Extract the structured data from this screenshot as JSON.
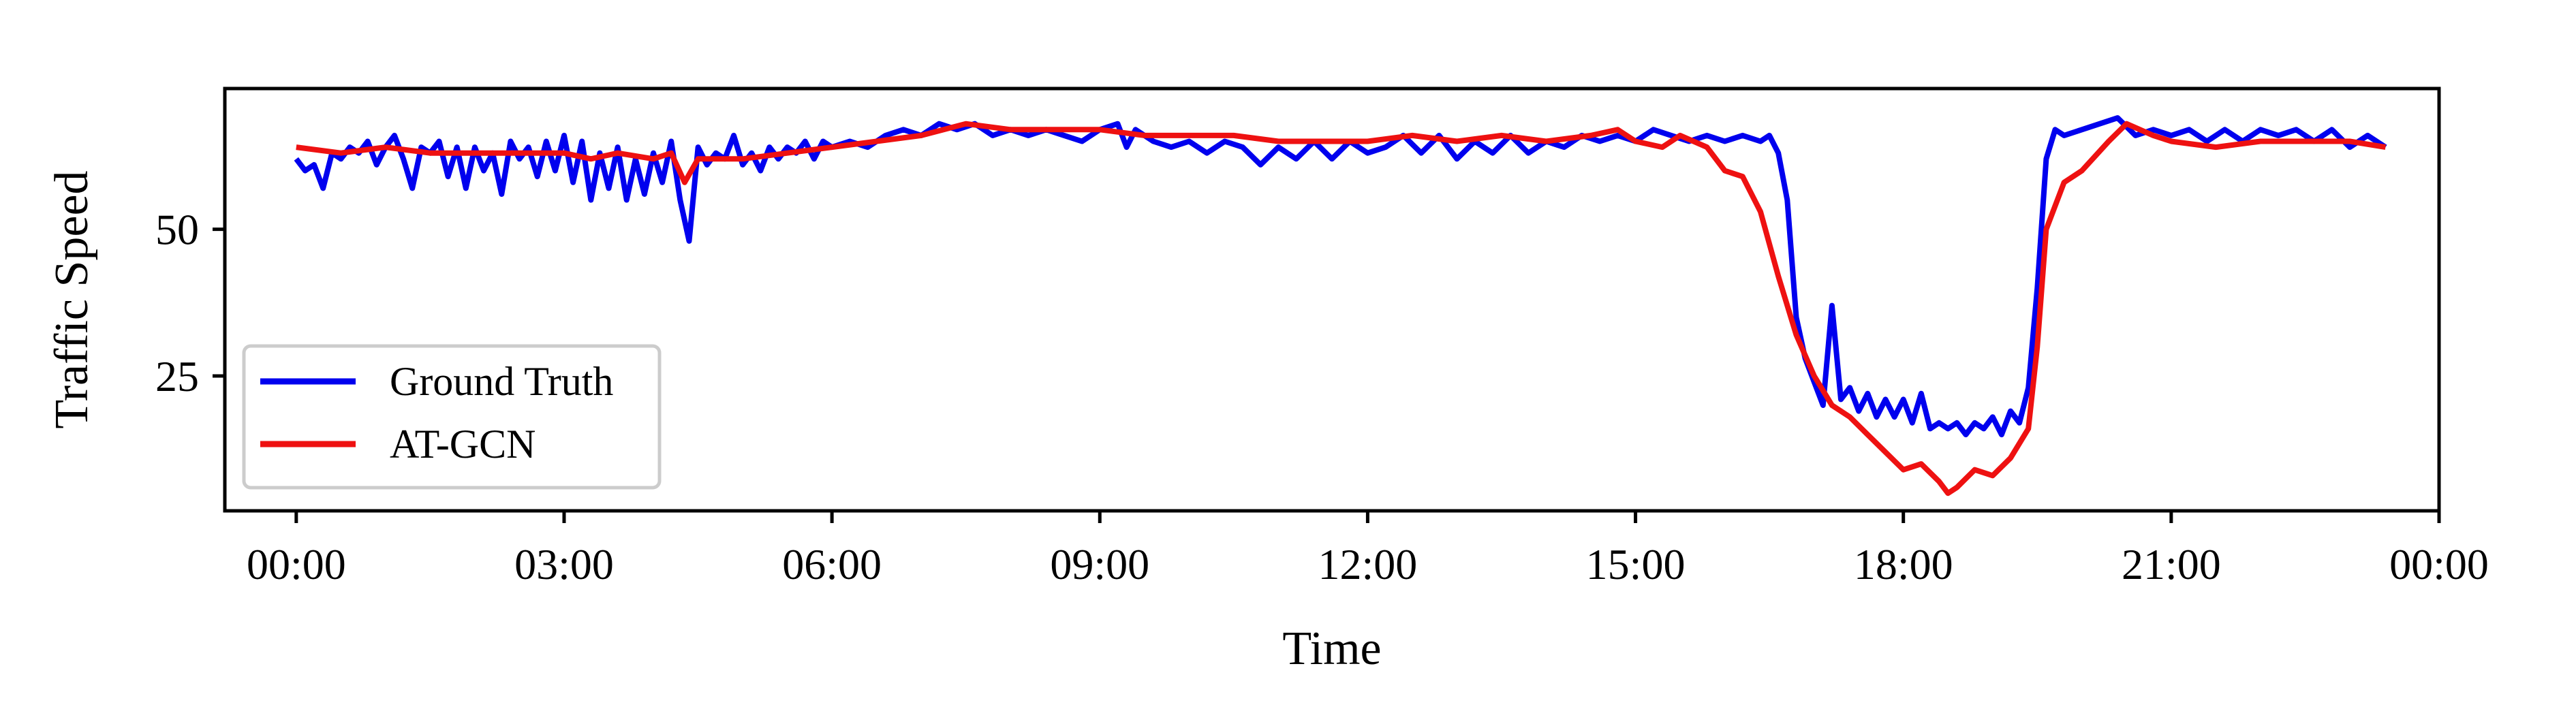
{
  "chart_data": {
    "type": "line",
    "xlabel": "Time",
    "ylabel": "Traffic Speed",
    "x_unit": "hours",
    "xlim": [
      -0.8,
      24.0
    ],
    "ylim": [
      2,
      74
    ],
    "xticks": [
      0,
      3,
      6,
      9,
      12,
      15,
      18,
      21,
      24
    ],
    "xtick_labels": [
      "00:00",
      "03:00",
      "06:00",
      "09:00",
      "12:00",
      "15:00",
      "18:00",
      "21:00",
      "00:00"
    ],
    "yticks": [
      25,
      50
    ],
    "ytick_labels": [
      "25",
      "50"
    ],
    "grid": false,
    "legend_position": "lower-left",
    "series": [
      {
        "name": "Ground Truth",
        "color": "#0000ee",
        "points": [
          [
            0.0,
            62
          ],
          [
            0.1,
            60
          ],
          [
            0.2,
            61
          ],
          [
            0.3,
            57
          ],
          [
            0.4,
            63
          ],
          [
            0.5,
            62
          ],
          [
            0.6,
            64
          ],
          [
            0.7,
            63
          ],
          [
            0.8,
            65
          ],
          [
            0.9,
            61
          ],
          [
            1.0,
            64
          ],
          [
            1.1,
            66
          ],
          [
            1.2,
            62
          ],
          [
            1.3,
            57
          ],
          [
            1.4,
            64
          ],
          [
            1.5,
            63
          ],
          [
            1.6,
            65
          ],
          [
            1.7,
            59
          ],
          [
            1.8,
            64
          ],
          [
            1.9,
            57
          ],
          [
            2.0,
            64
          ],
          [
            2.1,
            60
          ],
          [
            2.2,
            63
          ],
          [
            2.3,
            56
          ],
          [
            2.4,
            65
          ],
          [
            2.5,
            62
          ],
          [
            2.6,
            64
          ],
          [
            2.7,
            59
          ],
          [
            2.8,
            65
          ],
          [
            2.9,
            60
          ],
          [
            3.0,
            66
          ],
          [
            3.1,
            58
          ],
          [
            3.2,
            65
          ],
          [
            3.3,
            55
          ],
          [
            3.4,
            63
          ],
          [
            3.5,
            57
          ],
          [
            3.6,
            64
          ],
          [
            3.7,
            55
          ],
          [
            3.8,
            62
          ],
          [
            3.9,
            56
          ],
          [
            4.0,
            63
          ],
          [
            4.1,
            58
          ],
          [
            4.2,
            65
          ],
          [
            4.3,
            55
          ],
          [
            4.4,
            48
          ],
          [
            4.5,
            64
          ],
          [
            4.6,
            61
          ],
          [
            4.7,
            63
          ],
          [
            4.8,
            62
          ],
          [
            4.9,
            66
          ],
          [
            5.0,
            61
          ],
          [
            5.1,
            63
          ],
          [
            5.2,
            60
          ],
          [
            5.3,
            64
          ],
          [
            5.4,
            62
          ],
          [
            5.5,
            64
          ],
          [
            5.6,
            63
          ],
          [
            5.7,
            65
          ],
          [
            5.8,
            62
          ],
          [
            5.9,
            65
          ],
          [
            6.0,
            64
          ],
          [
            6.2,
            65
          ],
          [
            6.4,
            64
          ],
          [
            6.6,
            66
          ],
          [
            6.8,
            67
          ],
          [
            7.0,
            66
          ],
          [
            7.2,
            68
          ],
          [
            7.4,
            67
          ],
          [
            7.6,
            68
          ],
          [
            7.8,
            66
          ],
          [
            8.0,
            67
          ],
          [
            8.2,
            66
          ],
          [
            8.4,
            67
          ],
          [
            8.6,
            66
          ],
          [
            8.8,
            65
          ],
          [
            9.0,
            67
          ],
          [
            9.2,
            68
          ],
          [
            9.3,
            64
          ],
          [
            9.4,
            67
          ],
          [
            9.6,
            65
          ],
          [
            9.8,
            64
          ],
          [
            10.0,
            65
          ],
          [
            10.2,
            63
          ],
          [
            10.4,
            65
          ],
          [
            10.6,
            64
          ],
          [
            10.8,
            61
          ],
          [
            11.0,
            64
          ],
          [
            11.2,
            62
          ],
          [
            11.4,
            65
          ],
          [
            11.6,
            62
          ],
          [
            11.8,
            65
          ],
          [
            12.0,
            63
          ],
          [
            12.2,
            64
          ],
          [
            12.4,
            66
          ],
          [
            12.6,
            63
          ],
          [
            12.8,
            66
          ],
          [
            13.0,
            62
          ],
          [
            13.2,
            65
          ],
          [
            13.4,
            63
          ],
          [
            13.6,
            66
          ],
          [
            13.8,
            63
          ],
          [
            14.0,
            65
          ],
          [
            14.2,
            64
          ],
          [
            14.4,
            66
          ],
          [
            14.6,
            65
          ],
          [
            14.8,
            66
          ],
          [
            15.0,
            65
          ],
          [
            15.2,
            67
          ],
          [
            15.4,
            66
          ],
          [
            15.6,
            65
          ],
          [
            15.8,
            66
          ],
          [
            16.0,
            65
          ],
          [
            16.2,
            66
          ],
          [
            16.4,
            65
          ],
          [
            16.5,
            66
          ],
          [
            16.6,
            63
          ],
          [
            16.7,
            55
          ],
          [
            16.75,
            45
          ],
          [
            16.8,
            35
          ],
          [
            16.9,
            28
          ],
          [
            17.0,
            24
          ],
          [
            17.1,
            20
          ],
          [
            17.2,
            37
          ],
          [
            17.3,
            21
          ],
          [
            17.4,
            23
          ],
          [
            17.5,
            19
          ],
          [
            17.6,
            22
          ],
          [
            17.7,
            18
          ],
          [
            17.8,
            21
          ],
          [
            17.9,
            18
          ],
          [
            18.0,
            21
          ],
          [
            18.1,
            17
          ],
          [
            18.2,
            22
          ],
          [
            18.3,
            16
          ],
          [
            18.4,
            17
          ],
          [
            18.5,
            16
          ],
          [
            18.6,
            17
          ],
          [
            18.7,
            15
          ],
          [
            18.8,
            17
          ],
          [
            18.9,
            16
          ],
          [
            19.0,
            18
          ],
          [
            19.1,
            15
          ],
          [
            19.2,
            19
          ],
          [
            19.3,
            17
          ],
          [
            19.4,
            23
          ],
          [
            19.5,
            40
          ],
          [
            19.6,
            62
          ],
          [
            19.7,
            67
          ],
          [
            19.8,
            66
          ],
          [
            20.0,
            67
          ],
          [
            20.2,
            68
          ],
          [
            20.4,
            69
          ],
          [
            20.6,
            66
          ],
          [
            20.8,
            67
          ],
          [
            21.0,
            66
          ],
          [
            21.2,
            67
          ],
          [
            21.4,
            65
          ],
          [
            21.6,
            67
          ],
          [
            21.8,
            65
          ],
          [
            22.0,
            67
          ],
          [
            22.2,
            66
          ],
          [
            22.4,
            67
          ],
          [
            22.6,
            65
          ],
          [
            22.8,
            67
          ],
          [
            23.0,
            64
          ],
          [
            23.2,
            66
          ],
          [
            23.4,
            64
          ]
        ]
      },
      {
        "name": "AT-GCN",
        "color": "#ee1111",
        "points": [
          [
            0.0,
            64
          ],
          [
            0.5,
            63
          ],
          [
            1.0,
            64
          ],
          [
            1.5,
            63
          ],
          [
            2.0,
            63
          ],
          [
            2.5,
            63
          ],
          [
            3.0,
            63
          ],
          [
            3.3,
            62
          ],
          [
            3.6,
            63
          ],
          [
            4.0,
            62
          ],
          [
            4.2,
            63
          ],
          [
            4.35,
            58
          ],
          [
            4.5,
            62
          ],
          [
            5.0,
            62
          ],
          [
            5.5,
            63
          ],
          [
            6.0,
            64
          ],
          [
            6.5,
            65
          ],
          [
            7.0,
            66
          ],
          [
            7.5,
            68
          ],
          [
            8.0,
            67
          ],
          [
            8.5,
            67
          ],
          [
            9.0,
            67
          ],
          [
            9.5,
            66
          ],
          [
            10.0,
            66
          ],
          [
            10.5,
            66
          ],
          [
            11.0,
            65
          ],
          [
            11.5,
            65
          ],
          [
            12.0,
            65
          ],
          [
            12.5,
            66
          ],
          [
            13.0,
            65
          ],
          [
            13.5,
            66
          ],
          [
            14.0,
            65
          ],
          [
            14.5,
            66
          ],
          [
            14.8,
            67
          ],
          [
            15.0,
            65
          ],
          [
            15.3,
            64
          ],
          [
            15.5,
            66
          ],
          [
            15.8,
            64
          ],
          [
            16.0,
            60
          ],
          [
            16.2,
            59
          ],
          [
            16.4,
            53
          ],
          [
            16.6,
            42
          ],
          [
            16.8,
            32
          ],
          [
            17.0,
            25
          ],
          [
            17.2,
            20
          ],
          [
            17.4,
            18
          ],
          [
            17.6,
            15
          ],
          [
            17.8,
            12
          ],
          [
            18.0,
            9
          ],
          [
            18.2,
            10
          ],
          [
            18.4,
            7
          ],
          [
            18.5,
            5
          ],
          [
            18.6,
            6
          ],
          [
            18.8,
            9
          ],
          [
            19.0,
            8
          ],
          [
            19.2,
            11
          ],
          [
            19.4,
            16
          ],
          [
            19.5,
            30
          ],
          [
            19.6,
            50
          ],
          [
            19.8,
            58
          ],
          [
            20.0,
            60
          ],
          [
            20.3,
            65
          ],
          [
            20.5,
            68
          ],
          [
            20.8,
            66
          ],
          [
            21.0,
            65
          ],
          [
            21.5,
            64
          ],
          [
            22.0,
            65
          ],
          [
            22.5,
            65
          ],
          [
            23.0,
            65
          ],
          [
            23.4,
            64
          ]
        ]
      }
    ]
  }
}
